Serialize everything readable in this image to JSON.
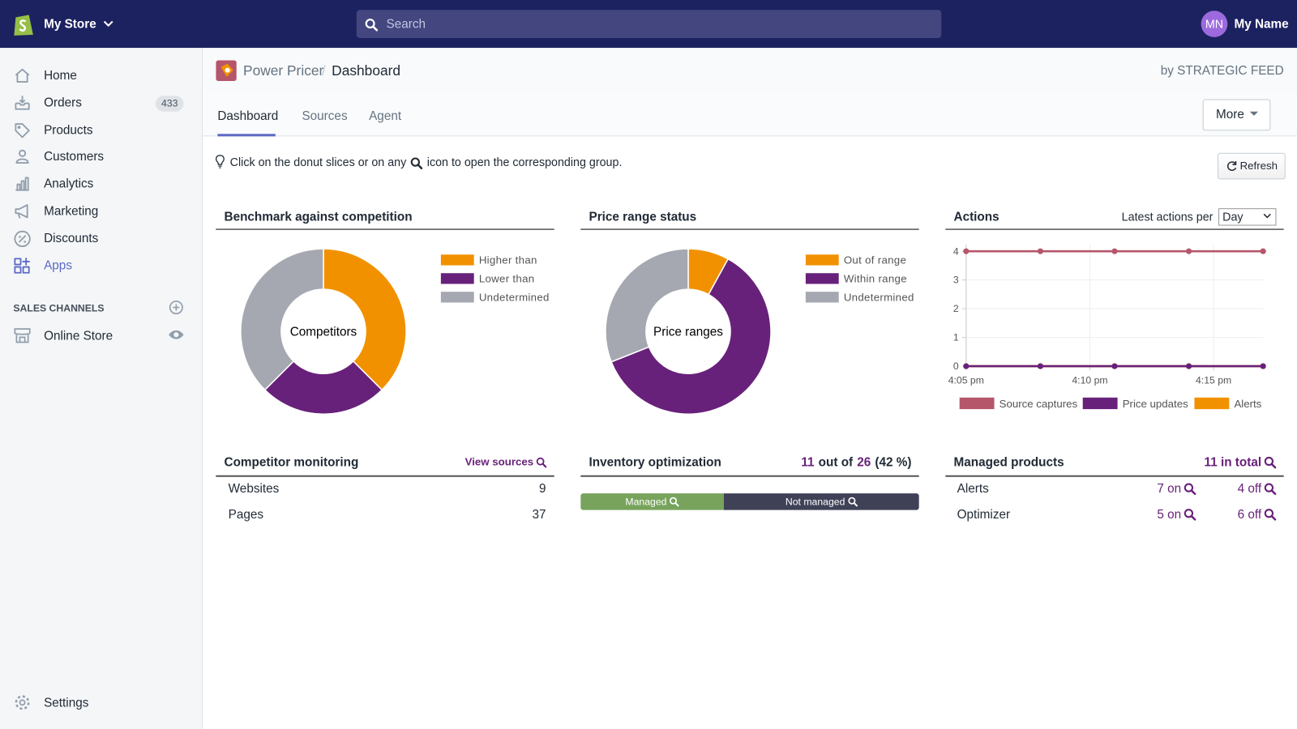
{
  "topbar": {
    "store": "My Store",
    "search": "Search",
    "avatar": "MN",
    "user": "My Name"
  },
  "nav": {
    "items": [
      "Home",
      "Orders",
      "Products",
      "Customers",
      "Analytics",
      "Marketing",
      "Discounts",
      "Apps"
    ],
    "orders_badge": 433,
    "section": "SALES CHANNELS",
    "channel": "Online Store",
    "settings": "Settings"
  },
  "header": {
    "app": "Power Pricer",
    "page": "Dashboard",
    "by": "by STRATEGIC FEED"
  },
  "tabs": [
    "Dashboard",
    "Sources",
    "Agent"
  ],
  "more": "More",
  "hint": {
    "before": "Click on the donut slices or on any",
    "after": "icon to open the corresponding group."
  },
  "refresh": "Refresh",
  "actions_per": {
    "label": "Latest actions per",
    "option": "Day"
  },
  "chart_data": [
    {
      "type": "donut",
      "title": "Benchmark against competition",
      "center": "Competitors",
      "categories": [
        "Higher than",
        "Lower than",
        "Undetermined"
      ],
      "values": [
        37.5,
        25,
        37.5
      ],
      "colors": [
        "#f29100",
        "#68217a",
        "#a5a8b0"
      ]
    },
    {
      "type": "donut",
      "title": "Price range status",
      "center": "Price ranges",
      "categories": [
        "Out of range",
        "Within range",
        "Undetermined"
      ],
      "values": [
        8,
        61,
        31
      ],
      "colors": [
        "#f29100",
        "#68217a",
        "#a5a8b0"
      ]
    },
    {
      "type": "line",
      "title": "Actions",
      "x": [
        965,
        968,
        971,
        974,
        977
      ],
      "xlim": [
        965,
        977
      ],
      "xticks": [
        {
          "value": 965,
          "label": "4:05 pm"
        },
        {
          "value": 970,
          "label": "4:10 pm"
        },
        {
          "value": 975,
          "label": "4:15 pm"
        }
      ],
      "ylim": [
        0,
        4
      ],
      "yticks": [
        0,
        1,
        2,
        3,
        4
      ],
      "grid": true,
      "series": [
        {
          "name": "Source captures",
          "color": "#b5566a",
          "values": [
            4,
            4,
            4,
            4,
            4
          ]
        },
        {
          "name": "Price updates",
          "color": "#68217a",
          "values": [
            0,
            0,
            0,
            0,
            0
          ]
        },
        {
          "name": "Alerts",
          "color": "#f29100",
          "values": [
            0,
            0,
            0,
            0,
            0
          ]
        }
      ]
    }
  ],
  "competitor": {
    "title": "Competitor monitoring",
    "link": "View sources",
    "rows": [
      [
        "Websites",
        9
      ],
      [
        "Pages",
        37
      ]
    ]
  },
  "inventory": {
    "title": "Inventory optimization",
    "managed": 11,
    "text": "out of",
    "total": 26,
    "percent": "(42 %)",
    "segments": [
      "Managed",
      "Not managed"
    ],
    "colors": [
      "#77a35c",
      "#3f4257"
    ]
  },
  "managed_products": {
    "title": "Managed products",
    "total": "11 in total",
    "rows": [
      [
        "Alerts",
        "7 on",
        "4 off"
      ],
      [
        "Optimizer",
        "5 on",
        "6 off"
      ]
    ]
  }
}
